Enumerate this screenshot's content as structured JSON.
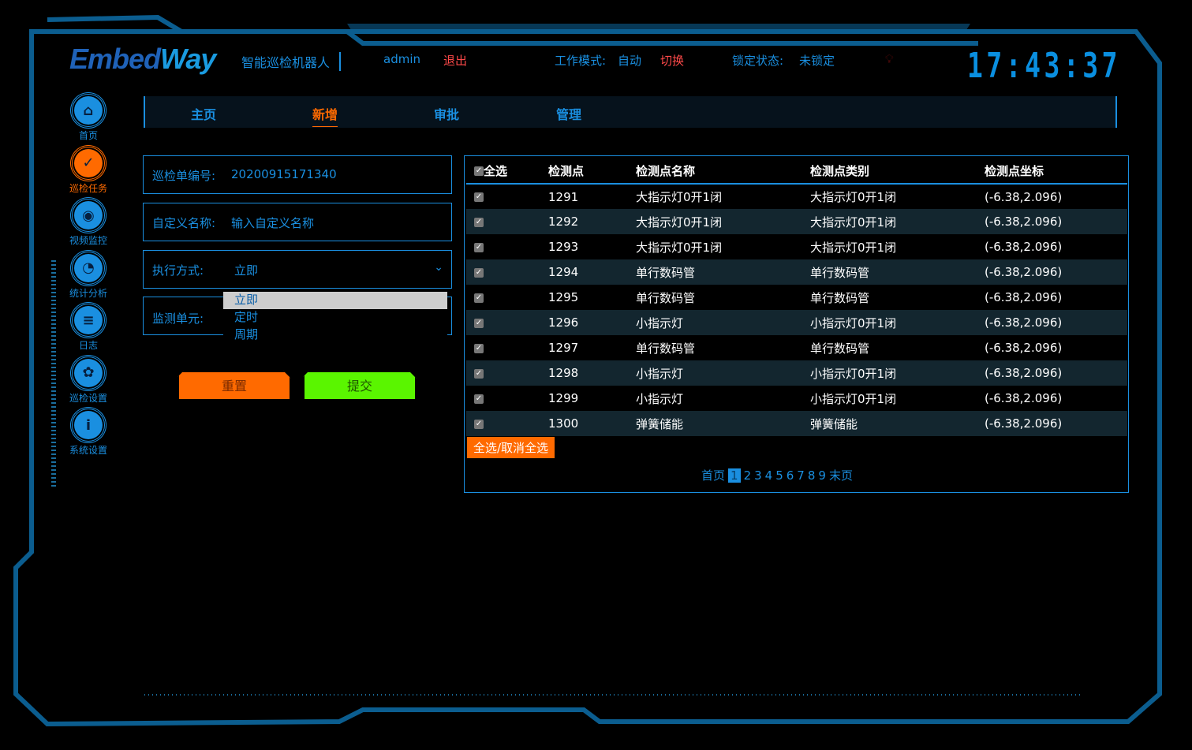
{
  "header": {
    "logo_a": "Embed",
    "logo_b": "Way",
    "subtitle": "智能巡检机器人",
    "user": "admin",
    "logout": "退出",
    "mode_label": "工作模式:",
    "mode_value": "自动",
    "switch": "切换",
    "lock_label": "锁定状态:",
    "lock_value": "未锁定",
    "clock": "17:43:37",
    "bulb_icon": "lightbulb-icon"
  },
  "sidebar": {
    "items": [
      {
        "label": "首页",
        "icon": "⌂"
      },
      {
        "label": "巡检任务",
        "icon": "✓"
      },
      {
        "label": "视频监控",
        "icon": "◉"
      },
      {
        "label": "统计分析",
        "icon": "◔"
      },
      {
        "label": "日志",
        "icon": "≡"
      },
      {
        "label": "巡检设置",
        "icon": "✿"
      },
      {
        "label": "系统设置",
        "icon": "i"
      }
    ],
    "active": 1
  },
  "tabs": [
    {
      "label": "主页"
    },
    {
      "label": "新增"
    },
    {
      "label": "审批"
    },
    {
      "label": "管理"
    }
  ],
  "form": {
    "id_label": "巡检单编号:",
    "id_value": "20200915171340",
    "name_label": "自定义名称:",
    "name_placeholder": "输入自定义名称",
    "exec_label": "执行方式:",
    "exec_value": "立即",
    "unit_label": "监测单元:",
    "options": [
      "立即",
      "定时",
      "周期"
    ],
    "reset": "重置",
    "submit": "提交"
  },
  "table": {
    "headers": [
      "全选",
      "检测点",
      "检测点名称",
      "检测点类别",
      "检测点坐标"
    ],
    "rows": [
      [
        "1291",
        "大指示灯0开1闭",
        "大指示灯0开1闭",
        "(-6.38,2.096)"
      ],
      [
        "1292",
        "大指示灯0开1闭",
        "大指示灯0开1闭",
        "(-6.38,2.096)"
      ],
      [
        "1293",
        "大指示灯0开1闭",
        "大指示灯0开1闭",
        "(-6.38,2.096)"
      ],
      [
        "1294",
        "单行数码管",
        "单行数码管",
        "(-6.38,2.096)"
      ],
      [
        "1295",
        "单行数码管",
        "单行数码管",
        "(-6.38,2.096)"
      ],
      [
        "1296",
        "小指示灯",
        "小指示灯0开1闭",
        "(-6.38,2.096)"
      ],
      [
        "1297",
        "单行数码管",
        "单行数码管",
        "(-6.38,2.096)"
      ],
      [
        "1298",
        "小指示灯",
        "小指示灯0开1闭",
        "(-6.38,2.096)"
      ],
      [
        "1299",
        "小指示灯",
        "小指示灯0开1闭",
        "(-6.38,2.096)"
      ],
      [
        "1300",
        "弹簧储能",
        "弹簧储能",
        "(-6.38,2.096)"
      ]
    ],
    "toggle_all": "全选/取消全选"
  },
  "pager": {
    "first": "首页",
    "pages": [
      "1",
      "2",
      "3",
      "4",
      "5",
      "6",
      "7",
      "8",
      "9"
    ],
    "current": "1",
    "last": "末页"
  },
  "colors": {
    "accent": "#1a8fe0",
    "orange": "#ff6a00",
    "green": "#5af500"
  }
}
